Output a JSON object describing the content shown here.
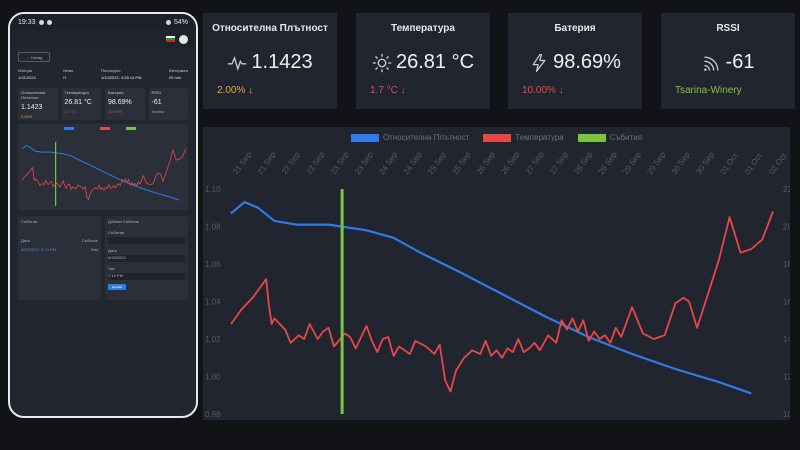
{
  "phone": {
    "status_time": "19:33",
    "status_battery": "54%",
    "back_label": "← Назад",
    "info": [
      {
        "label": "Избери",
        "value": "1/31/2022"
      },
      {
        "label": "Ниво",
        "value": "H"
      },
      {
        "label": "Последно",
        "value": "1/10/2022, 4:28:14 PM"
      },
      {
        "label": "Интервал",
        "value": "20 min"
      }
    ],
    "cards": [
      {
        "title": "Относителна Плътност",
        "value": "1.1423",
        "change": "2.00%"
      },
      {
        "title": "Температура",
        "value": "26.81 °C",
        "change": "1.7 °C"
      },
      {
        "title": "Батерия",
        "value": "98.69%",
        "change": "10.00%"
      },
      {
        "title": "RSSI",
        "value": "-61",
        "change": "Tsarina"
      }
    ],
    "events_title": "Събития",
    "events_cols": [
      "Дата",
      "Събитие"
    ],
    "events_row": [
      "9/25/2022, 5:13 PM",
      "Test"
    ],
    "add_event_title": "Добави Събитие",
    "field_labels": [
      "Събитие",
      "Дата",
      "Час"
    ],
    "field_values": [
      "",
      "9/25/2022",
      "7:15 PM"
    ],
    "submit_label": "Добави"
  },
  "cards": [
    {
      "title": "Относителна Плътност",
      "value": "1.1423",
      "change": "2.00% ↓",
      "change_color": "#f0a23a",
      "icon": "waveform-icon"
    },
    {
      "title": "Температура",
      "value": "26.81 °C",
      "change": "1.7 °C ↓",
      "change_color": "#e64a4a",
      "icon": "sun-icon"
    },
    {
      "title": "Батерия",
      "value": "98.69%",
      "change": "10.00% ↓",
      "change_color": "#e64a4a",
      "icon": "battery-bolt-icon"
    },
    {
      "title": "RSSI",
      "value": "-61",
      "change": "Tsarina-Winery",
      "change_color": "#82c341",
      "icon": "wifi-signal-icon"
    }
  ],
  "chart_data": {
    "type": "line",
    "legend": [
      {
        "name": "Относителна Плътност",
        "color": "#2f7be8"
      },
      {
        "name": "Температура",
        "color": "#e64848"
      },
      {
        "name": "Събития",
        "color": "#7cc43b"
      }
    ],
    "x_ticks": [
      "21 Sep",
      "21 Sep",
      "22 Sep",
      "22 Sep",
      "23 Sep",
      "23 Sep",
      "24 Sep",
      "24 Sep",
      "25 Sep",
      "25 Sep",
      "26 Sep",
      "26 Sep",
      "27 Sep",
      "27 Sep",
      "28 Sep",
      "28 Sep",
      "29 Sep",
      "29 Sep",
      "30 Sep",
      "30 Sep",
      "01 Oct",
      "01 Oct",
      "02 Oct"
    ],
    "y_left": {
      "ticks": [
        "1.10",
        "1.08",
        "1.06",
        "1.04",
        "1.02",
        "1.00",
        "0.98"
      ],
      "min": 0.98,
      "max": 1.1
    },
    "y_right": {
      "ticks": [
        "22",
        "20",
        "18",
        "16",
        "14",
        "12",
        "10"
      ],
      "min": 10,
      "max": 22
    },
    "x_range": [
      0,
      100
    ],
    "event_x": 20.5,
    "series": [
      {
        "name": "Относителна Плътност",
        "x": [
          0,
          2.5,
          5,
          8,
          12,
          18,
          25,
          30,
          35,
          42,
          50,
          58,
          66,
          74,
          82,
          90,
          96
        ],
        "values": [
          1.087,
          1.093,
          1.09,
          1.083,
          1.081,
          1.081,
          1.078,
          1.074,
          1.066,
          1.056,
          1.044,
          1.032,
          1.021,
          1.012,
          1.004,
          0.997,
          0.991
        ]
      },
      {
        "name": "Температура",
        "x": [
          0,
          2,
          4,
          6.5,
          7,
          7.5,
          8,
          10,
          11,
          12.5,
          13.5,
          14.5,
          16,
          17,
          18,
          19,
          21,
          22,
          23,
          25,
          26,
          27,
          28,
          29,
          30,
          31,
          33,
          34,
          36,
          37.5,
          38.5,
          39.5,
          40.5,
          41.5,
          43,
          44.5,
          46,
          47,
          48,
          49,
          50,
          51,
          52,
          53,
          54,
          55,
          56,
          57,
          58.5,
          60,
          61,
          62,
          63,
          64,
          65,
          66,
          67,
          68,
          69,
          70,
          71,
          72,
          74,
          76,
          78,
          80,
          82,
          83.5,
          84.5,
          86,
          88,
          90,
          92,
          94,
          96,
          98,
          100
        ],
        "values": [
          14.8,
          15.6,
          16.2,
          17.2,
          15.8,
          14.8,
          15.1,
          14.5,
          13.8,
          14.2,
          14.0,
          14.8,
          14.0,
          14.4,
          14.6,
          13.6,
          14.3,
          14.1,
          13.5,
          14.7,
          13.9,
          13.3,
          14.0,
          14.1,
          13.1,
          13.6,
          13.2,
          13.9,
          13.6,
          13.2,
          13.7,
          11.8,
          11.2,
          12.3,
          13.0,
          13.4,
          13.2,
          13.9,
          13.1,
          13.4,
          13.0,
          13.5,
          13.3,
          14.0,
          13.3,
          13.5,
          13.8,
          13.4,
          14.2,
          13.8,
          15.0,
          14.5,
          15.1,
          14.4,
          15.0,
          13.9,
          14.4,
          14.0,
          14.2,
          13.8,
          14.6,
          14.1,
          15.7,
          14.3,
          14.0,
          14.2,
          15.9,
          16.2,
          16.0,
          14.6,
          16.4,
          18.2,
          20.5,
          18.6,
          18.8,
          19.3,
          20.8
        ]
      }
    ]
  }
}
